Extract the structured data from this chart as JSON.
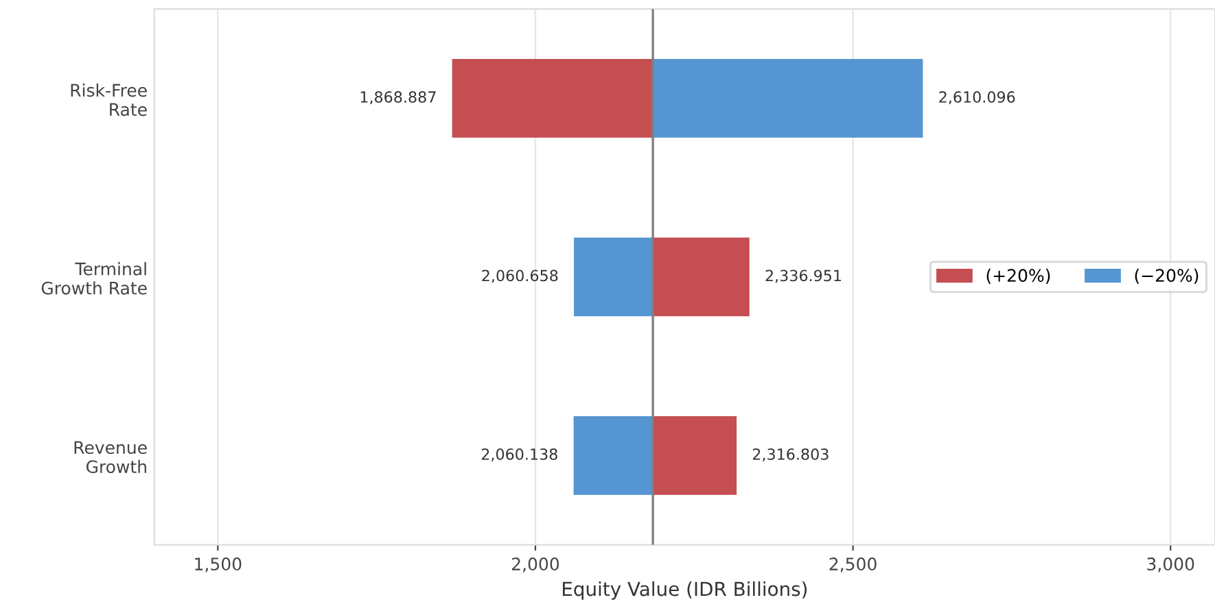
{
  "chart_data": {
    "type": "bar",
    "orientation": "horizontal",
    "xlabel": "Equity Value (IDR Billions)",
    "categories": [
      "Risk-Free\nRate",
      "Terminal\nGrowth Rate",
      "Revenue\nGrowth"
    ],
    "series": [
      {
        "name": "(+20%)",
        "color": "#c44e52",
        "base": [
          2185,
          2185,
          2185
        ],
        "values": [
          -316.113,
          151.951,
          131.803
        ],
        "value_labels": [
          "1,868.887",
          "2,336.951",
          "2,316.803"
        ]
      },
      {
        "name": "(−20%)",
        "color": "#5595d2",
        "base": [
          2185,
          2185,
          2185
        ],
        "values": [
          425.096,
          -124.342,
          -124.862
        ],
        "value_labels": [
          "2,610.096",
          "2,060.658",
          "2,060.138"
        ]
      }
    ],
    "xlim": [
      1400,
      3070
    ],
    "xticks": [
      {
        "value": 1500,
        "label": "1,500"
      },
      {
        "value": 2000,
        "label": "2,000"
      },
      {
        "value": 2500,
        "label": "2,500"
      },
      {
        "value": 3000,
        "label": "3,000"
      }
    ],
    "ref_lines": [
      {
        "axis": "x",
        "value": 2185,
        "color": "#808080"
      }
    ],
    "grid": "x",
    "legend": "right"
  }
}
